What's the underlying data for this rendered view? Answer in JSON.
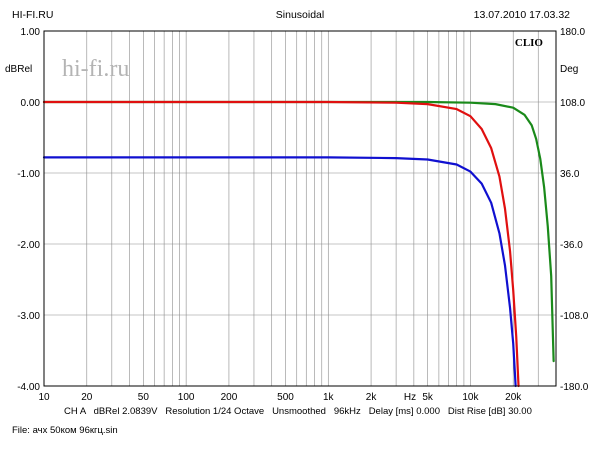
{
  "header": {
    "left": "HI-FI.RU",
    "center": "Sinusoidal",
    "right": "13.07.2010 17.03.32"
  },
  "logo": {
    "brand": "CLIO",
    "watermark": "hi-fi.ru"
  },
  "footer": {
    "settings": "CH A   dBRel 2.0839V   Resolution 1/24 Octave   Unsmoothed   96kHz   Delay [ms] 0.000   Dist Rise [dB] 30.00",
    "file": "File: ачх 50ком 96кгц.sin"
  },
  "chart_data": {
    "type": "line",
    "x_scale": "log",
    "xlim": [
      10,
      40000
    ],
    "ylim": [
      -4.0,
      1.0
    ],
    "y2lim": [
      -180.0,
      180.0
    ],
    "ylabel": "dBRel",
    "y2label": "Deg",
    "xunit_label": "Hz",
    "grid": true,
    "x_ticks": [
      {
        "v": 10,
        "label": "10"
      },
      {
        "v": 20,
        "label": "20"
      },
      {
        "v": 50,
        "label": "50"
      },
      {
        "v": 100,
        "label": "100"
      },
      {
        "v": 200,
        "label": "200"
      },
      {
        "v": 500,
        "label": "500"
      },
      {
        "v": 1000,
        "label": "1k"
      },
      {
        "v": 2000,
        "label": "2k"
      },
      {
        "v": 5000,
        "label": "5k"
      },
      {
        "v": 10000,
        "label": "10k"
      },
      {
        "v": 20000,
        "label": "20k"
      }
    ],
    "y_ticks": [
      {
        "v": 1.0,
        "label": "1.00"
      },
      {
        "v": 0.0,
        "label": "0.00"
      },
      {
        "v": -1.0,
        "label": "-1.00"
      },
      {
        "v": -2.0,
        "label": "-2.00"
      },
      {
        "v": -3.0,
        "label": "-3.00"
      },
      {
        "v": -4.0,
        "label": "-4.00"
      }
    ],
    "y2_ticks": [
      {
        "v": 180,
        "label": "180.0"
      },
      {
        "v": 108,
        "label": "108.0"
      },
      {
        "v": 36,
        "label": "36.0"
      },
      {
        "v": -36,
        "label": "-36.0"
      },
      {
        "v": -108,
        "label": "-108.0"
      },
      {
        "v": -180,
        "label": "-180.0"
      }
    ],
    "series": [
      {
        "color": "#1a8a1a",
        "x": [
          10,
          100,
          1000,
          5000,
          10000,
          15000,
          20000,
          24000,
          27000,
          29000,
          31000,
          33000,
          35000,
          37000,
          38500
        ],
        "y": [
          0.0,
          0.0,
          0.0,
          0.0,
          -0.01,
          -0.03,
          -0.08,
          -0.18,
          -0.33,
          -0.52,
          -0.8,
          -1.2,
          -1.75,
          -2.45,
          -3.65
        ]
      },
      {
        "color": "#e01010",
        "x": [
          10,
          100,
          1000,
          3000,
          5000,
          8000,
          10000,
          12000,
          14000,
          16000,
          17500,
          19000,
          20000,
          21000,
          21800
        ],
        "y": [
          0.0,
          0.0,
          0.0,
          -0.01,
          -0.03,
          -0.1,
          -0.2,
          -0.38,
          -0.65,
          -1.05,
          -1.5,
          -2.1,
          -2.65,
          -3.3,
          -4.0
        ]
      },
      {
        "color": "#1010d0",
        "x": [
          10,
          100,
          1000,
          3000,
          5000,
          8000,
          10000,
          12000,
          14000,
          16000,
          17500,
          19000,
          20000,
          20800
        ],
        "y": [
          -0.78,
          -0.78,
          -0.78,
          -0.79,
          -0.81,
          -0.88,
          -0.98,
          -1.15,
          -1.42,
          -1.85,
          -2.3,
          -2.9,
          -3.4,
          -4.0
        ]
      }
    ]
  }
}
